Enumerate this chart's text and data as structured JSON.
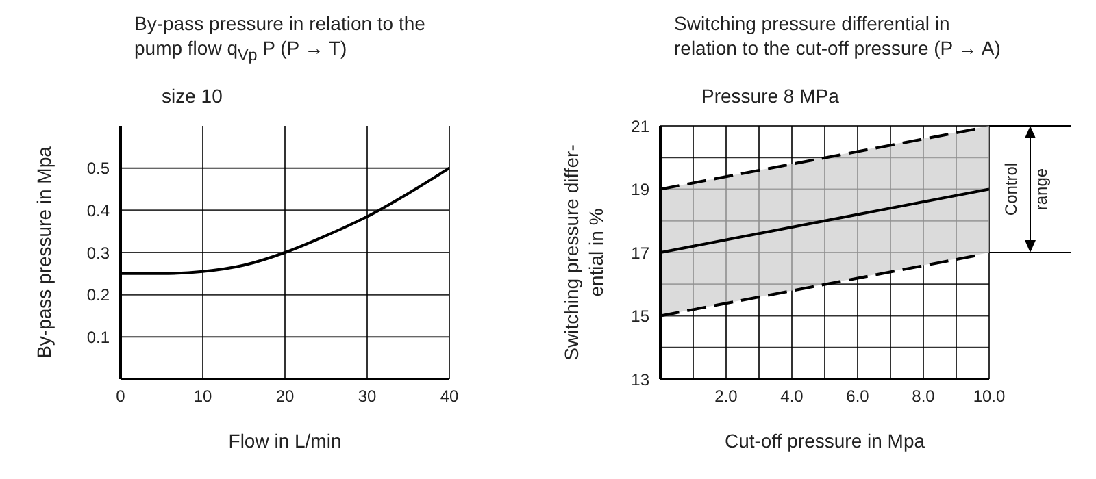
{
  "chart_data": [
    {
      "type": "line",
      "title": "By-pass pressure in relation to the pump flow q$_{Vp}$ P (P → T)",
      "xlabel": "Flow  in L/min",
      "ylabel": "By-pass pressure in Mpa",
      "annotations": [
        "size 10"
      ],
      "x": [
        0,
        5,
        10,
        15,
        20,
        25,
        30,
        35,
        40
      ],
      "series": [
        {
          "color": "#000000",
          "values": [
            0.25,
            0.25,
            0.255,
            0.27,
            0.3,
            0.34,
            0.385,
            0.44,
            0.5
          ]
        }
      ],
      "xlim": [
        0,
        40
      ],
      "xticks": [
        0,
        10,
        20,
        30,
        40
      ],
      "ylim": [
        0,
        0.6
      ],
      "yticks": [
        0.1,
        0.2,
        0.3,
        0.4,
        0.5
      ],
      "grid": true,
      "marker": "none",
      "line_style": "solid"
    },
    {
      "type": "line",
      "title": "Switching pressure differential in relation to the cut-off pressure (P → A)",
      "xlabel": "Cut-off pressure in Mpa",
      "ylabel": "Switching pressure differ-\nential in %",
      "annotations": [
        "Pressure  8 MPa",
        "Control range"
      ],
      "series": [
        {
          "color": "#000000",
          "x": [
            0,
            9.6
          ],
          "values": [
            19,
            20.9
          ],
          "line_style": "dashed"
        },
        {
          "color": "#000000",
          "x": [
            0,
            10
          ],
          "values": [
            17,
            19
          ],
          "lower": [
            15,
            17
          ],
          "upper": [
            19,
            21
          ],
          "line_style": "solid"
        },
        {
          "color": "#000000",
          "x": [
            0,
            9.6
          ],
          "values": [
            15,
            16.9
          ],
          "line_style": "dashed"
        }
      ],
      "xlim": [
        0,
        10
      ],
      "xticks": [
        {
          "value": 1,
          "label": null
        },
        {
          "value": 2,
          "label": "2.0"
        },
        {
          "value": 3,
          "label": null
        },
        {
          "value": 4,
          "label": "4.0"
        },
        {
          "value": 5,
          "label": null
        },
        {
          "value": 6,
          "label": "6.0"
        },
        {
          "value": 7,
          "label": null
        },
        {
          "value": 8,
          "label": "8.0"
        },
        {
          "value": 9,
          "label": null
        },
        {
          "value": 10,
          "label": "10.0"
        }
      ],
      "ylim": [
        13,
        21
      ],
      "yticks": [
        13,
        {
          "value": 14,
          "label": null
        },
        15,
        {
          "value": 16,
          "label": null
        },
        17,
        {
          "value": 18,
          "label": null
        },
        19,
        {
          "value": 20,
          "label": null
        },
        21
      ],
      "grid": true,
      "marker": "none"
    }
  ]
}
